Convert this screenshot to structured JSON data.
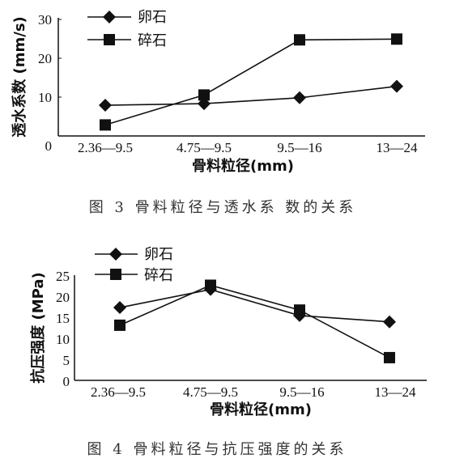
{
  "chart_data": [
    {
      "type": "line",
      "categories": [
        "2.36—9.5",
        "4.75—9.5",
        "9.5—16",
        "13—24"
      ],
      "xlabel": "骨料粒径(mm)",
      "ylabel": "透水系数 (mm/s)",
      "ylim": [
        0,
        30
      ],
      "yticks": [
        "0",
        "10",
        "20",
        "30"
      ],
      "series": [
        {
          "name": "卵石",
          "marker": "diamond",
          "values": [
            7.8,
            8.2,
            9.7,
            12.6
          ]
        },
        {
          "name": "碎石",
          "marker": "square",
          "values": [
            2.8,
            10.4,
            24.4,
            24.6
          ]
        }
      ],
      "legend": "top-left",
      "caption": "图 3 骨料粒径与透水系 数的关系"
    },
    {
      "type": "line",
      "categories": [
        "2.36—9.5",
        "4.75—9.5",
        "9.5—16",
        "13—24"
      ],
      "xlabel": "骨料粒径(mm)",
      "ylabel": "抗压强度 (MPa)",
      "ylim": [
        0,
        25
      ],
      "yticks": [
        "0",
        "5",
        "10",
        "15",
        "20",
        "25"
      ],
      "series": [
        {
          "name": "卵石",
          "marker": "diamond",
          "values": [
            17.3,
            21.6,
            15.4,
            13.9
          ]
        },
        {
          "name": "碎石",
          "marker": "square",
          "values": [
            13.1,
            22.6,
            16.7,
            5.4
          ]
        }
      ],
      "legend": "top-left",
      "caption": "图 4 骨料粒径与抗压强度的关系"
    }
  ]
}
